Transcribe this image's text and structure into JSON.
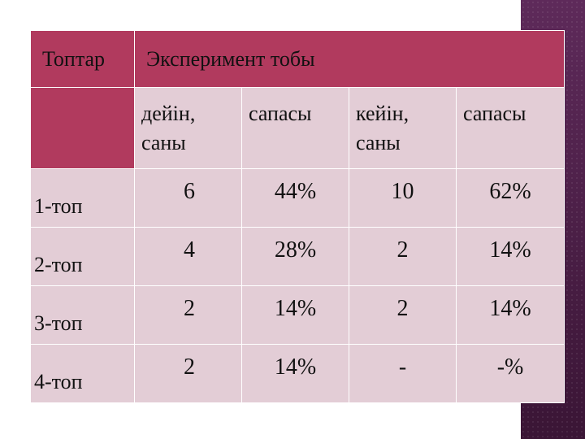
{
  "table": {
    "header": {
      "groups_label": "Топтар",
      "experiment_label": "Эксперимент тобы"
    },
    "subheaders": [
      "дейін, саны",
      "сапасы",
      "кейін, саны",
      "сапасы"
    ],
    "rows": [
      {
        "group": "1-топ",
        "before_count": "6",
        "before_quality": "44%",
        "after_count": "10",
        "after_quality": "62%"
      },
      {
        "group": "2-топ",
        "before_count": "4",
        "before_quality": "28%",
        "after_count": "2",
        "after_quality": "14%"
      },
      {
        "group": "3-топ",
        "before_count": "2",
        "before_quality": "14%",
        "after_count": "2",
        "after_quality": "14%"
      },
      {
        "group": "4-топ",
        "before_count": "2",
        "before_quality": "14%",
        "after_count": "-",
        "after_quality": "-%"
      }
    ]
  },
  "colors": {
    "header_magenta": "#b13a5e",
    "cell_pink": "#e3cdd6",
    "side_band": "#5e2a5a"
  }
}
